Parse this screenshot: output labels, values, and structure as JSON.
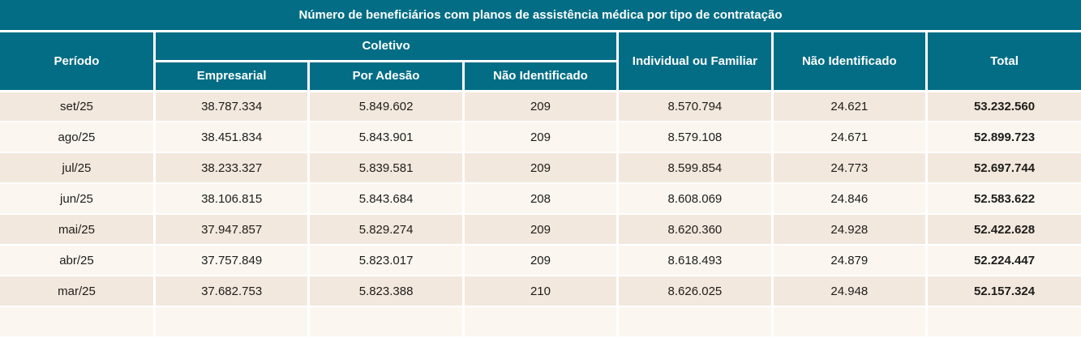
{
  "chart_data": {
    "type": "table",
    "title": "Número de beneficiários com planos de assistência médica por tipo de contratação",
    "group_header": "Coletivo",
    "columns": [
      "Período",
      "Empresarial",
      "Por Adesão",
      "Não Identificado",
      "Individual ou Familiar",
      "Não Identificado",
      "Total"
    ],
    "rows": [
      [
        "set/25",
        "38.787.334",
        "5.849.602",
        "209",
        "8.570.794",
        "24.621",
        "53.232.560"
      ],
      [
        "ago/25",
        "38.451.834",
        "5.843.901",
        "209",
        "8.579.108",
        "24.671",
        "52.899.723"
      ],
      [
        "jul/25",
        "38.233.327",
        "5.839.581",
        "209",
        "8.599.854",
        "24.773",
        "52.697.744"
      ],
      [
        "jun/25",
        "38.106.815",
        "5.843.684",
        "208",
        "8.608.069",
        "24.846",
        "52.583.622"
      ],
      [
        "mai/25",
        "37.947.857",
        "5.829.274",
        "209",
        "8.620.360",
        "24.928",
        "52.422.628"
      ],
      [
        "abr/25",
        "37.757.849",
        "5.823.017",
        "209",
        "8.618.493",
        "24.879",
        "52.224.447"
      ],
      [
        "mar/25",
        "37.682.753",
        "5.823.388",
        "210",
        "8.626.025",
        "24.948",
        "52.157.324"
      ]
    ],
    "layout_hints": {
      "row_striping": true,
      "total_column_bold": true,
      "header_spans": "Coletivo spans Empresarial, Por Adesão, Não Identificado"
    },
    "colors": {
      "header_bg": "#026d85",
      "header_text": "#ffffff",
      "row_odd_bg": "#f3e8dd",
      "row_even_bg": "#fbf6f0",
      "text": "#1d1d1b",
      "divider": "#ffffff"
    }
  }
}
